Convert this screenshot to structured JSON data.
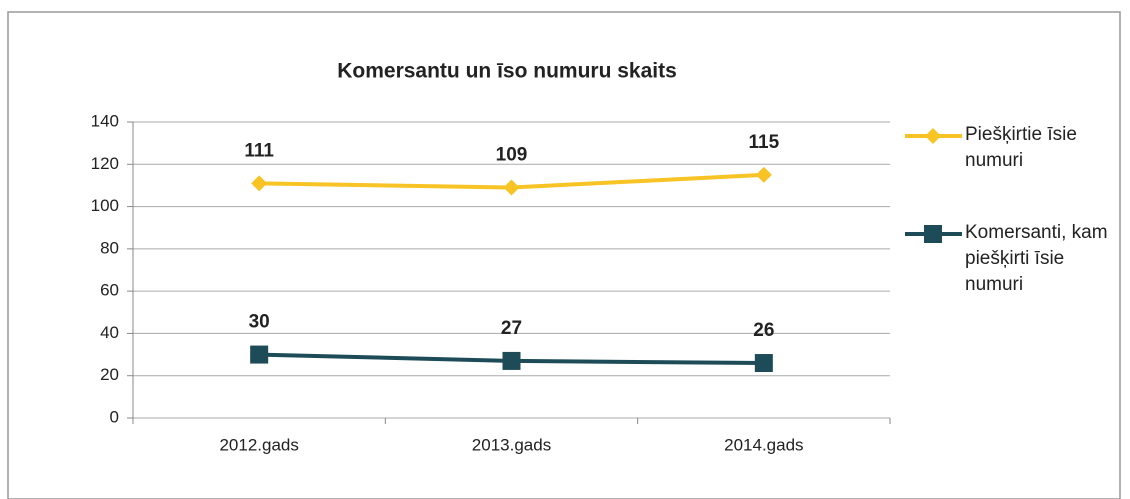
{
  "chart_data": {
    "type": "line",
    "title": "Komersantu un īso numuru skaits",
    "categories": [
      "2012.gads",
      "2013.gads",
      "2014.gads"
    ],
    "series": [
      {
        "name": "Piešķirtie īsie numuri",
        "color": "#f7c325",
        "marker": "diamond",
        "values": [
          111,
          109,
          115
        ]
      },
      {
        "name": "Komersanti, kam piešķirti īsie numuri",
        "color": "#1d4b57",
        "marker": "square",
        "values": [
          30,
          27,
          26
        ]
      }
    ],
    "ylim": [
      0,
      140
    ],
    "yticks": [
      0,
      20,
      40,
      60,
      80,
      100,
      120,
      140
    ],
    "grid": true,
    "legend": "right"
  }
}
